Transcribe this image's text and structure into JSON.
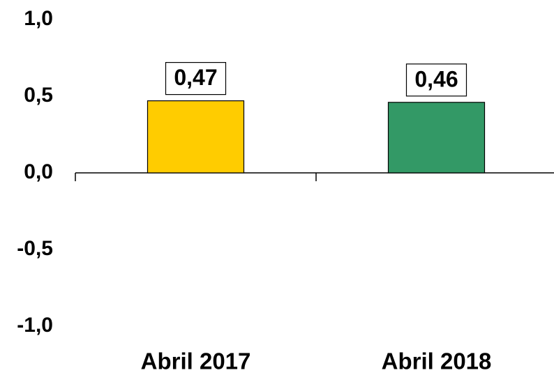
{
  "chart_data": {
    "type": "bar",
    "categories": [
      "Abril 2017",
      "Abril 2018"
    ],
    "values": [
      0.47,
      0.46
    ],
    "value_labels": [
      "0,47",
      "0,46"
    ],
    "colors": [
      "#ffcc00",
      "#339966"
    ],
    "ylim": [
      -1,
      1
    ],
    "yticks": [
      {
        "value": -1,
        "label": "-1,0"
      },
      {
        "value": -0.5,
        "label": "-0,5"
      },
      {
        "value": 0,
        "label": "0,0"
      },
      {
        "value": 0.5,
        "label": "0,5"
      },
      {
        "value": 1,
        "label": "1,0"
      }
    ],
    "grid": false
  }
}
